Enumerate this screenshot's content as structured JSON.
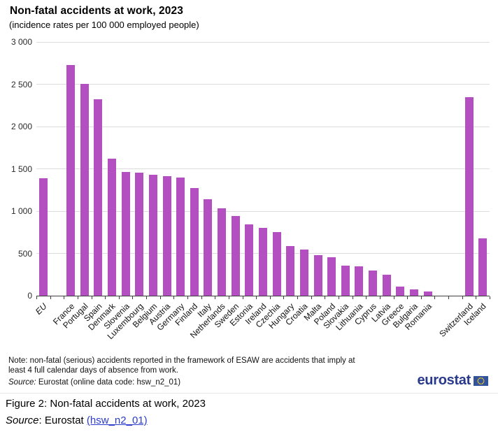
{
  "chart": {
    "title": "Non-fatal accidents at work, 2023",
    "subtitle": "(incidence rates per 100 000 employed people)"
  },
  "chart_data": {
    "type": "bar",
    "categories": [
      "EU",
      "France",
      "Portugal",
      "Spain",
      "Denmark",
      "Slovenia",
      "Luxembourg",
      "Belgium",
      "Austria",
      "Germany",
      "Finland",
      "Italy",
      "Netherlands",
      "Sweden",
      "Estonia",
      "Ireland",
      "Czechia",
      "Hungary",
      "Croatia",
      "Malta",
      "Poland",
      "Slovakia",
      "Lithuania",
      "Cyprus",
      "Latvia",
      "Greece",
      "Bulgaria",
      "Romania",
      "Switzerland",
      "Iceland"
    ],
    "values": [
      1390,
      2730,
      2505,
      2325,
      1620,
      1460,
      1455,
      1430,
      1410,
      1395,
      1270,
      1140,
      1035,
      945,
      840,
      805,
      750,
      590,
      545,
      480,
      455,
      355,
      350,
      295,
      245,
      105,
      75,
      50,
      2350,
      675
    ],
    "title": "Non-fatal accidents at work, 2023",
    "subtitle": "(incidence rates per 100 000 employed people)",
    "xlabel": "",
    "ylabel": "",
    "ylim": [
      0,
      3000
    ],
    "ytick_interval": 500,
    "ytick_labels": [
      "0",
      "500",
      "1 000",
      "1 500",
      "2 000",
      "2 500",
      "3 000"
    ],
    "grid": "horizontal",
    "legend": "none",
    "gaps_after_index": {
      "0": 1,
      "27": 2
    },
    "emphasized_category": "EU",
    "bar_color": "#b44fc2"
  },
  "note": {
    "text": "Note: non-fatal (serious) accidents reported in the framework of ESAW are accidents that imply at least 4 full calendar days of absence from work.",
    "source_prefix": "Source:",
    "source_text": " Eurostat (online data code: hsw_n2_01)"
  },
  "logo": {
    "wordmark": "eurostat"
  },
  "caption": {
    "figure_label": "Figure 2: Non-fatal accidents at work, 2023",
    "source_prefix": "Source",
    "source_mid": ": Eurostat ",
    "link_text": "(hsw_n2_01)"
  },
  "colors": {
    "bar": "#b44fc2",
    "gridline": "#dcdcdc",
    "axis": "#3f3f3f",
    "link": "#2b3ccb",
    "logo_navy": "#293a8d",
    "flag_blue": "#33539c",
    "flag_star": "#ffd617"
  }
}
